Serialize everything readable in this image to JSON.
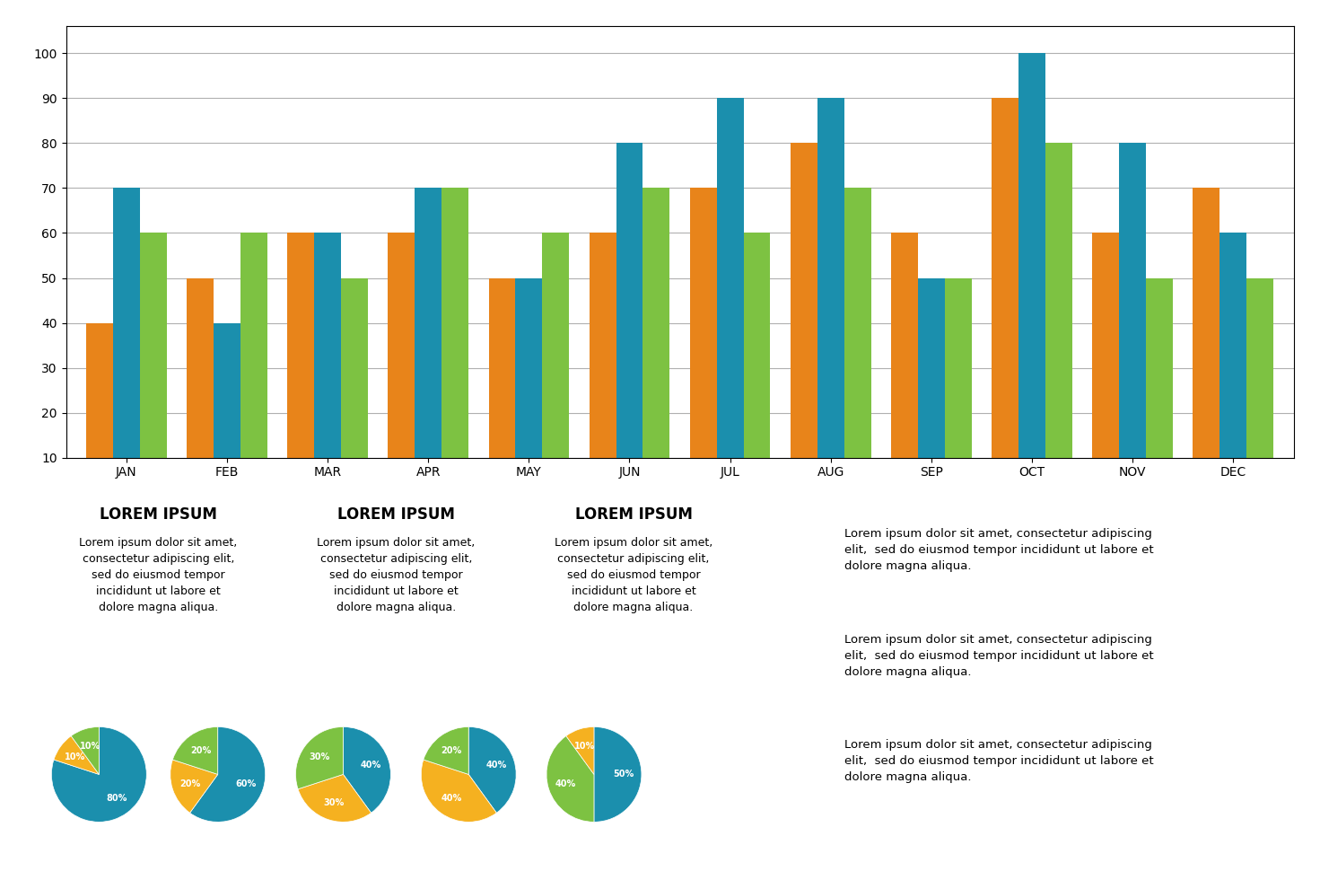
{
  "chart_data": [
    {
      "type": "bar",
      "categories": [
        "JAN",
        "FEB",
        "MAR",
        "APR",
        "MAY",
        "JUN",
        "JUL",
        "AUG",
        "SEP",
        "OCT",
        "NOV",
        "DEC"
      ],
      "series": [
        {
          "color": "#E8841A",
          "values": [
            40,
            50,
            60,
            60,
            50,
            60,
            70,
            80,
            60,
            90,
            60,
            70
          ]
        },
        {
          "color": "#1B8FAD",
          "values": [
            70,
            40,
            60,
            70,
            50,
            80,
            90,
            90,
            50,
            100,
            80,
            60
          ]
        },
        {
          "color": "#7DC242",
          "values": [
            60,
            60,
            50,
            70,
            60,
            70,
            60,
            70,
            50,
            80,
            50,
            50
          ]
        }
      ],
      "ylim": [
        10,
        106
      ],
      "yticks": [
        10,
        20,
        30,
        40,
        50,
        60,
        70,
        80,
        90,
        100
      ],
      "grid": true,
      "annotations": [
        "LOREM IPSUM",
        "LOREM IPSUM",
        "LOREM IPSUM",
        "Lorem ipsum dolor sit amet,\nconsectetur adipiscing elit,\nsed do eiusmod tempor\nincididunt ut labore et\ndolore magna aliqua.",
        "Lorem ipsum dolor sit amet,\nconsectetur adipiscing elit,\nsed do eiusmod tempor\nincididunt ut labore et\ndolore magna aliqua.",
        "Lorem ipsum dolor sit amet,\nconsectetur adipiscing elit,\nsed do eiusmod tempor\nincididunt ut labore et\ndolore magna aliqua.",
        "Lorem ipsum dolor sit amet, consectetur adipiscing\nelit,  sed do eiusmod tempor incididunt ut labore et\ndolore magna aliqua.",
        "Lorem ipsum dolor sit amet, consectetur adipiscing\nelit,  sed do eiusmod tempor incididunt ut labore et\ndolore magna aliqua.",
        "Lorem ipsum dolor sit amet, consectetur adipiscing\nelit,  sed do eiusmod tempor incididunt ut labore et\ndolore magna aliqua."
      ]
    },
    {
      "type": "pie",
      "values": [
        80,
        10,
        10
      ],
      "value_labels": [
        "80%",
        "10%",
        "10%"
      ],
      "colors": [
        "#1B8FAD",
        "#F5B120",
        "#7DC242"
      ],
      "data_labels": true
    },
    {
      "type": "pie",
      "values": [
        60,
        20,
        20
      ],
      "value_labels": [
        "60%",
        "20%",
        "20%"
      ],
      "colors": [
        "#1B8FAD",
        "#F5B120",
        "#7DC242"
      ],
      "data_labels": true
    },
    {
      "type": "pie",
      "values": [
        40,
        30,
        30
      ],
      "value_labels": [
        "40%",
        "30%",
        "30%"
      ],
      "colors": [
        "#1B8FAD",
        "#F5B120",
        "#7DC242"
      ],
      "data_labels": true
    },
    {
      "type": "pie",
      "values": [
        40,
        40,
        20
      ],
      "value_labels": [
        "40%",
        "40%",
        "20%"
      ],
      "colors": [
        "#1B8FAD",
        "#F5B120",
        "#7DC242"
      ],
      "data_labels": true
    },
    {
      "type": "pie",
      "values": [
        50,
        40,
        10
      ],
      "value_labels": [
        "50%",
        "40%",
        "10%"
      ],
      "colors": [
        "#1B8FAD",
        "#7DC242",
        "#F5B120"
      ],
      "data_labels": true
    }
  ]
}
